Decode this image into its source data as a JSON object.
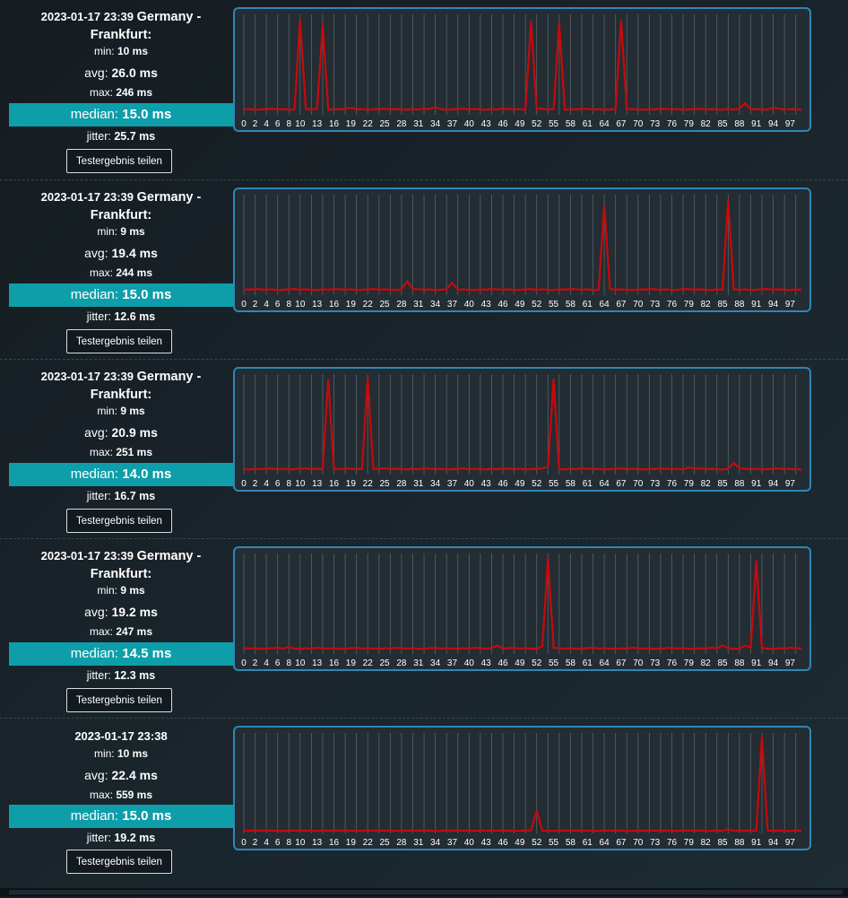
{
  "share_label": "Testergebnis teilen",
  "labels": {
    "min": "min: ",
    "avg": "avg: ",
    "max": "max: ",
    "median": "median: ",
    "jitter": "jitter: "
  },
  "colors": {
    "line": "#c8090c",
    "median_band": "#0e9eaa",
    "chart_border": "#2f86b5",
    "chart_bg": "#232d33",
    "grid": "#56636b"
  },
  "results": [
    {
      "timestamp": "2023-01-17 23:39",
      "location": "Germany - Frankfurt:",
      "min": "10 ms",
      "avg": "26.0 ms",
      "max": "246 ms",
      "median": "15.0 ms",
      "jitter": "25.7 ms"
    },
    {
      "timestamp": "2023-01-17 23:39",
      "location": "Germany - Frankfurt:",
      "min": "9 ms",
      "avg": "19.4 ms",
      "max": "244 ms",
      "median": "15.0 ms",
      "jitter": "12.6 ms"
    },
    {
      "timestamp": "2023-01-17 23:39",
      "location": "Germany - Frankfurt:",
      "min": "9 ms",
      "avg": "20.9 ms",
      "max": "251 ms",
      "median": "14.0 ms",
      "jitter": "16.7 ms"
    },
    {
      "timestamp": "2023-01-17 23:39",
      "location": "Germany - Frankfurt:",
      "min": "9 ms",
      "avg": "19.2 ms",
      "max": "247 ms",
      "median": "14.5 ms",
      "jitter": "12.3 ms"
    },
    {
      "timestamp": "2023-01-17 23:38",
      "location": "",
      "min": "10 ms",
      "avg": "22.4 ms",
      "max": "559 ms",
      "median": "15.0 ms",
      "jitter": "19.2 ms"
    }
  ],
  "chart_data": [
    {
      "type": "line",
      "x_tick_labels": [
        "0",
        "2",
        "4",
        "6",
        "8",
        "10",
        "13",
        "16",
        "19",
        "22",
        "25",
        "28",
        "31",
        "34",
        "37",
        "40",
        "43",
        "46",
        "49",
        "52",
        "55",
        "58",
        "61",
        "64",
        "67",
        "70",
        "73",
        "76",
        "79",
        "82",
        "85",
        "88",
        "91",
        "94",
        "97"
      ],
      "xlim": [
        0,
        99
      ],
      "ylim": [
        0,
        260
      ],
      "grid": true,
      "base": [
        14,
        15,
        13,
        14,
        15,
        16,
        14,
        15,
        13,
        14,
        15,
        16,
        14,
        15,
        14,
        13,
        15,
        14,
        16,
        15,
        14,
        15,
        13,
        14,
        15,
        16,
        14,
        15,
        14,
        13,
        15,
        14,
        16,
        15,
        14,
        15,
        13,
        14,
        15,
        16,
        14,
        15,
        14,
        13,
        15,
        14,
        16,
        15,
        14,
        15,
        13,
        14,
        15,
        16,
        14,
        15,
        14,
        13,
        15,
        14,
        16,
        15,
        14,
        15,
        13,
        14,
        15,
        16,
        14,
        15,
        14,
        13,
        15,
        14,
        16,
        15,
        14,
        15,
        13,
        14,
        15,
        16,
        14,
        15,
        14,
        13,
        15,
        14,
        16,
        15,
        14,
        15,
        13,
        14,
        15,
        16,
        14,
        15,
        14,
        13
      ],
      "spikes": [
        [
          10,
          246
        ],
        [
          14,
          232
        ],
        [
          19,
          18
        ],
        [
          34,
          20
        ],
        [
          51,
          242
        ],
        [
          56,
          238
        ],
        [
          67,
          244
        ],
        [
          89,
          30
        ],
        [
          94,
          18
        ]
      ]
    },
    {
      "type": "line",
      "x_tick_labels": [
        "0",
        "2",
        "4",
        "6",
        "8",
        "10",
        "13",
        "16",
        "19",
        "22",
        "25",
        "28",
        "31",
        "34",
        "37",
        "40",
        "43",
        "46",
        "49",
        "52",
        "55",
        "58",
        "61",
        "64",
        "67",
        "70",
        "73",
        "76",
        "79",
        "82",
        "85",
        "88",
        "91",
        "94",
        "97"
      ],
      "xlim": [
        0,
        99
      ],
      "ylim": [
        0,
        260
      ],
      "grid": true,
      "base": [
        15,
        14,
        16,
        15,
        14,
        15,
        13,
        14,
        15,
        16,
        14,
        15,
        14,
        13,
        15,
        14,
        16,
        15,
        14,
        15,
        13,
        14,
        15,
        16,
        14,
        15,
        14,
        13,
        15,
        14,
        16,
        15,
        14,
        15,
        13,
        14,
        15,
        16,
        14,
        15,
        14,
        13,
        15,
        14,
        16,
        15,
        14,
        15,
        13,
        14,
        15,
        16,
        14,
        15,
        14,
        13,
        15,
        14,
        16,
        15,
        14,
        15,
        13,
        14,
        15,
        16,
        14,
        15,
        14,
        13,
        15,
        14,
        16,
        15,
        14,
        15,
        13,
        14,
        15,
        16,
        14,
        15,
        14,
        13,
        15,
        14,
        16,
        15,
        14,
        15,
        13,
        14,
        15,
        16,
        14,
        15,
        14,
        13,
        15,
        14
      ],
      "spikes": [
        [
          29,
          36
        ],
        [
          37,
          32
        ],
        [
          64,
          230
        ],
        [
          86,
          244
        ]
      ]
    },
    {
      "type": "line",
      "x_tick_labels": [
        "0",
        "2",
        "4",
        "6",
        "8",
        "10",
        "13",
        "16",
        "19",
        "22",
        "25",
        "28",
        "31",
        "34",
        "37",
        "40",
        "43",
        "46",
        "49",
        "52",
        "55",
        "58",
        "61",
        "64",
        "67",
        "70",
        "73",
        "76",
        "79",
        "82",
        "85",
        "88",
        "91",
        "94",
        "97"
      ],
      "xlim": [
        0,
        99
      ],
      "ylim": [
        0,
        260
      ],
      "grid": true,
      "base": [
        14,
        13,
        15,
        14,
        16,
        15,
        14,
        15,
        13,
        14,
        15,
        16,
        14,
        15,
        14,
        13,
        15,
        14,
        16,
        15,
        14,
        15,
        13,
        14,
        15,
        16,
        14,
        15,
        14,
        13,
        15,
        14,
        16,
        15,
        14,
        15,
        13,
        14,
        15,
        16,
        14,
        15,
        14,
        13,
        15,
        14,
        16,
        15,
        14,
        15,
        13,
        14,
        15,
        16,
        14,
        15,
        14,
        13,
        15,
        14,
        16,
        15,
        14,
        15,
        13,
        14,
        15,
        16,
        14,
        15,
        14,
        13,
        15,
        14,
        16,
        15,
        14,
        15,
        13,
        14,
        15,
        16,
        14,
        15,
        14,
        13,
        15,
        14,
        16,
        15,
        14,
        15,
        13,
        14,
        15,
        16,
        14,
        15,
        14,
        13
      ],
      "spikes": [
        [
          15,
          246
        ],
        [
          22,
          251
        ],
        [
          54,
          20
        ],
        [
          55,
          246
        ],
        [
          79,
          18
        ],
        [
          87,
          30
        ]
      ]
    },
    {
      "type": "line",
      "x_tick_labels": [
        "0",
        "2",
        "4",
        "6",
        "8",
        "10",
        "13",
        "16",
        "19",
        "22",
        "25",
        "28",
        "31",
        "34",
        "37",
        "40",
        "43",
        "46",
        "49",
        "52",
        "55",
        "58",
        "61",
        "64",
        "67",
        "70",
        "73",
        "76",
        "79",
        "82",
        "85",
        "88",
        "91",
        "94",
        "97"
      ],
      "xlim": [
        0,
        99
      ],
      "ylim": [
        0,
        260
      ],
      "grid": true,
      "base": [
        15,
        14,
        15,
        13,
        14,
        15,
        16,
        14,
        15,
        14,
        13,
        15,
        14,
        16,
        15,
        14,
        15,
        13,
        14,
        15,
        16,
        14,
        15,
        14,
        13,
        15,
        14,
        16,
        15,
        14,
        15,
        13,
        14,
        15,
        16,
        14,
        15,
        14,
        13,
        15,
        14,
        16,
        15,
        14,
        15,
        13,
        14,
        15,
        16,
        14,
        15,
        14,
        13,
        15,
        14,
        16,
        15,
        14,
        15,
        13,
        14,
        15,
        16,
        14,
        15,
        14,
        13,
        15,
        14,
        16,
        15,
        14,
        15,
        13,
        14,
        15,
        16,
        14,
        15,
        14,
        13,
        15,
        14,
        16,
        15,
        14,
        15,
        13,
        14,
        15,
        16,
        14,
        15,
        14,
        13,
        15,
        14,
        16,
        15,
        14
      ],
      "spikes": [
        [
          8,
          18
        ],
        [
          45,
          22
        ],
        [
          53,
          20
        ],
        [
          54,
          247
        ],
        [
          85,
          22
        ],
        [
          89,
          22
        ],
        [
          91,
          240
        ]
      ]
    },
    {
      "type": "line",
      "x_tick_labels": [
        "0",
        "2",
        "4",
        "6",
        "8",
        "10",
        "13",
        "16",
        "19",
        "22",
        "25",
        "28",
        "31",
        "34",
        "37",
        "40",
        "43",
        "46",
        "49",
        "52",
        "55",
        "58",
        "61",
        "64",
        "67",
        "70",
        "73",
        "76",
        "79",
        "82",
        "85",
        "88",
        "91",
        "94",
        "97"
      ],
      "xlim": [
        0,
        99
      ],
      "ylim": [
        0,
        580
      ],
      "grid": true,
      "base": [
        16,
        15,
        17,
        16,
        15,
        16,
        14,
        15,
        16,
        17,
        15,
        16,
        15,
        14,
        16,
        15,
        17,
        16,
        15,
        16,
        14,
        15,
        16,
        17,
        15,
        16,
        15,
        14,
        16,
        15,
        17,
        16,
        15,
        16,
        14,
        15,
        16,
        17,
        15,
        16,
        15,
        14,
        16,
        15,
        17,
        16,
        15,
        16,
        14,
        15,
        16,
        17,
        15,
        16,
        15,
        14,
        16,
        15,
        17,
        16,
        15,
        16,
        14,
        15,
        16,
        17,
        15,
        16,
        15,
        14,
        16,
        15,
        17,
        16,
        15,
        16,
        14,
        15,
        16,
        17,
        15,
        16,
        15,
        14,
        16,
        15,
        17,
        16,
        15,
        16,
        14,
        15,
        16,
        17,
        15,
        16,
        15,
        14,
        16,
        15
      ],
      "spikes": [
        [
          52,
          130
        ],
        [
          86,
          24
        ],
        [
          92,
          559
        ]
      ]
    }
  ]
}
